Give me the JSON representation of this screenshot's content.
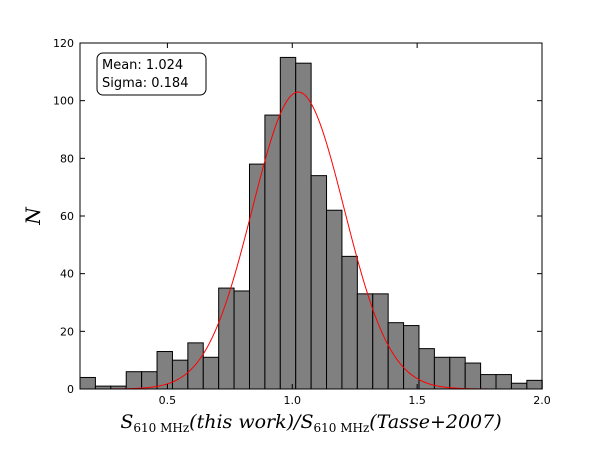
{
  "chart_data": {
    "type": "bar",
    "ylabel": "N",
    "xlabel_parts": {
      "s1": "S",
      "sub1": "610 MHz",
      "arg1": "(this work)/",
      "s2": "S",
      "sub2": "610 MHz",
      "arg2": "(Tasse+2007)"
    },
    "xlim": [
      0.15,
      2.0
    ],
    "ylim": [
      0,
      120
    ],
    "xticks": [
      "0.5",
      "1.0",
      "1.5",
      "2.0"
    ],
    "yticks": [
      "0",
      "20",
      "40",
      "60",
      "80",
      "100",
      "120"
    ],
    "bin_start": 0.15,
    "bin_width": 0.0617,
    "values": [
      4,
      1,
      1,
      6,
      6,
      13,
      10,
      16,
      11,
      35,
      34,
      78,
      95,
      115,
      113,
      74,
      62,
      46,
      33,
      33,
      23,
      22,
      14,
      11,
      11,
      9,
      5,
      5,
      2,
      3
    ],
    "bar_color": "#808080",
    "fit": {
      "type": "gaussian",
      "mean": 1.024,
      "sigma": 0.184,
      "peak": 103,
      "color": "#ff0000"
    },
    "annotation": {
      "mean_text": "Mean: 1.024",
      "sigma_text": "Sigma: 0.184"
    },
    "grid": false
  }
}
